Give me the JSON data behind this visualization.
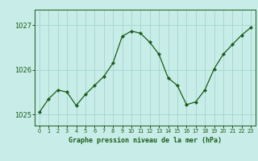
{
  "x": [
    0,
    1,
    2,
    3,
    4,
    5,
    6,
    7,
    8,
    9,
    10,
    11,
    12,
    13,
    14,
    15,
    16,
    17,
    18,
    19,
    20,
    21,
    22,
    23
  ],
  "y": [
    1025.05,
    1025.35,
    1025.55,
    1025.5,
    1025.2,
    1025.45,
    1025.65,
    1025.85,
    1026.15,
    1026.75,
    1026.87,
    1026.82,
    1026.62,
    1026.35,
    1025.82,
    1025.65,
    1025.22,
    1025.28,
    1025.55,
    1026.02,
    1026.35,
    1026.57,
    1026.78,
    1026.95
  ],
  "ylim": [
    1024.75,
    1027.35
  ],
  "yticks": [
    1025,
    1026,
    1027
  ],
  "xticks": [
    0,
    1,
    2,
    3,
    4,
    5,
    6,
    7,
    8,
    9,
    10,
    11,
    12,
    13,
    14,
    15,
    16,
    17,
    18,
    19,
    20,
    21,
    22,
    23
  ],
  "line_color": "#1a5c1a",
  "marker": "D",
  "marker_size": 2.2,
  "bg_color": "#c8ede8",
  "grid_color": "#a8d8d0",
  "xlabel": "Graphe pression niveau de la mer (hPa)",
  "xlabel_color": "#1a5c1a",
  "tick_color": "#1a5c1a",
  "bottom_label_bg": "#2d6e2d"
}
